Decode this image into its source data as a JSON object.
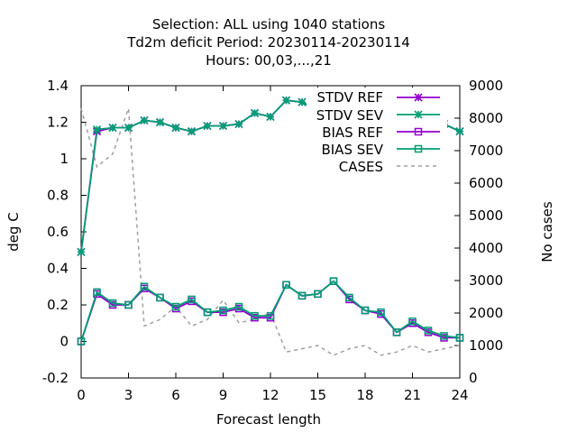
{
  "chart_data": {
    "type": "line",
    "title_lines": [
      "Selection: ALL using  1040 stations",
      "Td2m deficit   Period: 20230114-20230114",
      "Hours:  00,03,...,21"
    ],
    "xlabel": "Forecast length",
    "ylabel": "deg C",
    "y2label": "No cases",
    "xlim": [
      0,
      24
    ],
    "ylim": [
      -0.2,
      1.4
    ],
    "y2lim": [
      0,
      9000
    ],
    "xticks": [
      0,
      3,
      6,
      9,
      12,
      15,
      18,
      21,
      24
    ],
    "yticks": [
      -0.2,
      0,
      0.2,
      0.4,
      0.6,
      0.8,
      1,
      1.2,
      1.4
    ],
    "ytick_labels": [
      "-0.2",
      "0",
      "0.2",
      "0.4",
      "0.6",
      "0.8",
      "1",
      "1.2",
      "1.4"
    ],
    "y2ticks": [
      0,
      1000,
      2000,
      3000,
      4000,
      5000,
      6000,
      7000,
      8000,
      9000
    ],
    "grid": false,
    "legend_position": "top-right",
    "x": [
      0,
      1,
      2,
      3,
      4,
      5,
      6,
      7,
      8,
      9,
      10,
      11,
      12,
      13,
      14,
      15,
      16,
      17,
      18,
      19,
      20,
      21,
      22,
      23,
      24
    ],
    "series": [
      {
        "name": "STDV REF",
        "axis": "y",
        "color": "#9400d3",
        "marker": "star",
        "values": [
          0.49,
          1.15,
          1.17,
          1.17,
          1.21,
          1.2,
          1.17,
          1.15,
          1.18,
          1.18,
          1.19,
          1.25,
          1.23,
          1.32,
          1.31,
          1.26,
          1.26,
          1.2,
          1.17,
          1.12,
          1.12,
          1.15,
          1.17,
          1.19,
          1.15
        ]
      },
      {
        "name": "STDV SEV",
        "axis": "y",
        "color": "#009e73",
        "marker": "star",
        "values": [
          0.49,
          1.16,
          1.17,
          1.17,
          1.21,
          1.2,
          1.17,
          1.15,
          1.18,
          1.18,
          1.19,
          1.25,
          1.23,
          1.32,
          1.31,
          1.27,
          1.27,
          1.2,
          1.16,
          1.13,
          1.12,
          1.14,
          1.17,
          1.19,
          1.15
        ]
      },
      {
        "name": "BIAS REF",
        "axis": "y",
        "color": "#9400d3",
        "marker": "square",
        "values": [
          0.0,
          0.26,
          0.2,
          0.2,
          0.29,
          0.24,
          0.18,
          0.22,
          0.16,
          0.16,
          0.18,
          0.13,
          0.13,
          0.31,
          0.25,
          0.26,
          0.33,
          0.23,
          0.17,
          0.15,
          0.05,
          0.1,
          0.05,
          0.02,
          0.02
        ]
      },
      {
        "name": "BIAS SEV",
        "axis": "y",
        "color": "#009e73",
        "marker": "square",
        "values": [
          0.0,
          0.27,
          0.21,
          0.2,
          0.3,
          0.24,
          0.19,
          0.23,
          0.16,
          0.17,
          0.19,
          0.14,
          0.14,
          0.31,
          0.25,
          0.26,
          0.33,
          0.24,
          0.17,
          0.16,
          0.05,
          0.11,
          0.06,
          0.03,
          0.02
        ]
      },
      {
        "name": "CASES",
        "axis": "y2",
        "color": "#a0a0a0",
        "marker": "none",
        "dashed": true,
        "values": [
          8300,
          6500,
          6900,
          8300,
          1600,
          1800,
          2200,
          1600,
          1800,
          2400,
          1700,
          1800,
          2000,
          800,
          900,
          1000,
          700,
          900,
          1000,
          700,
          800,
          1000,
          800,
          900,
          1000
        ]
      }
    ]
  }
}
